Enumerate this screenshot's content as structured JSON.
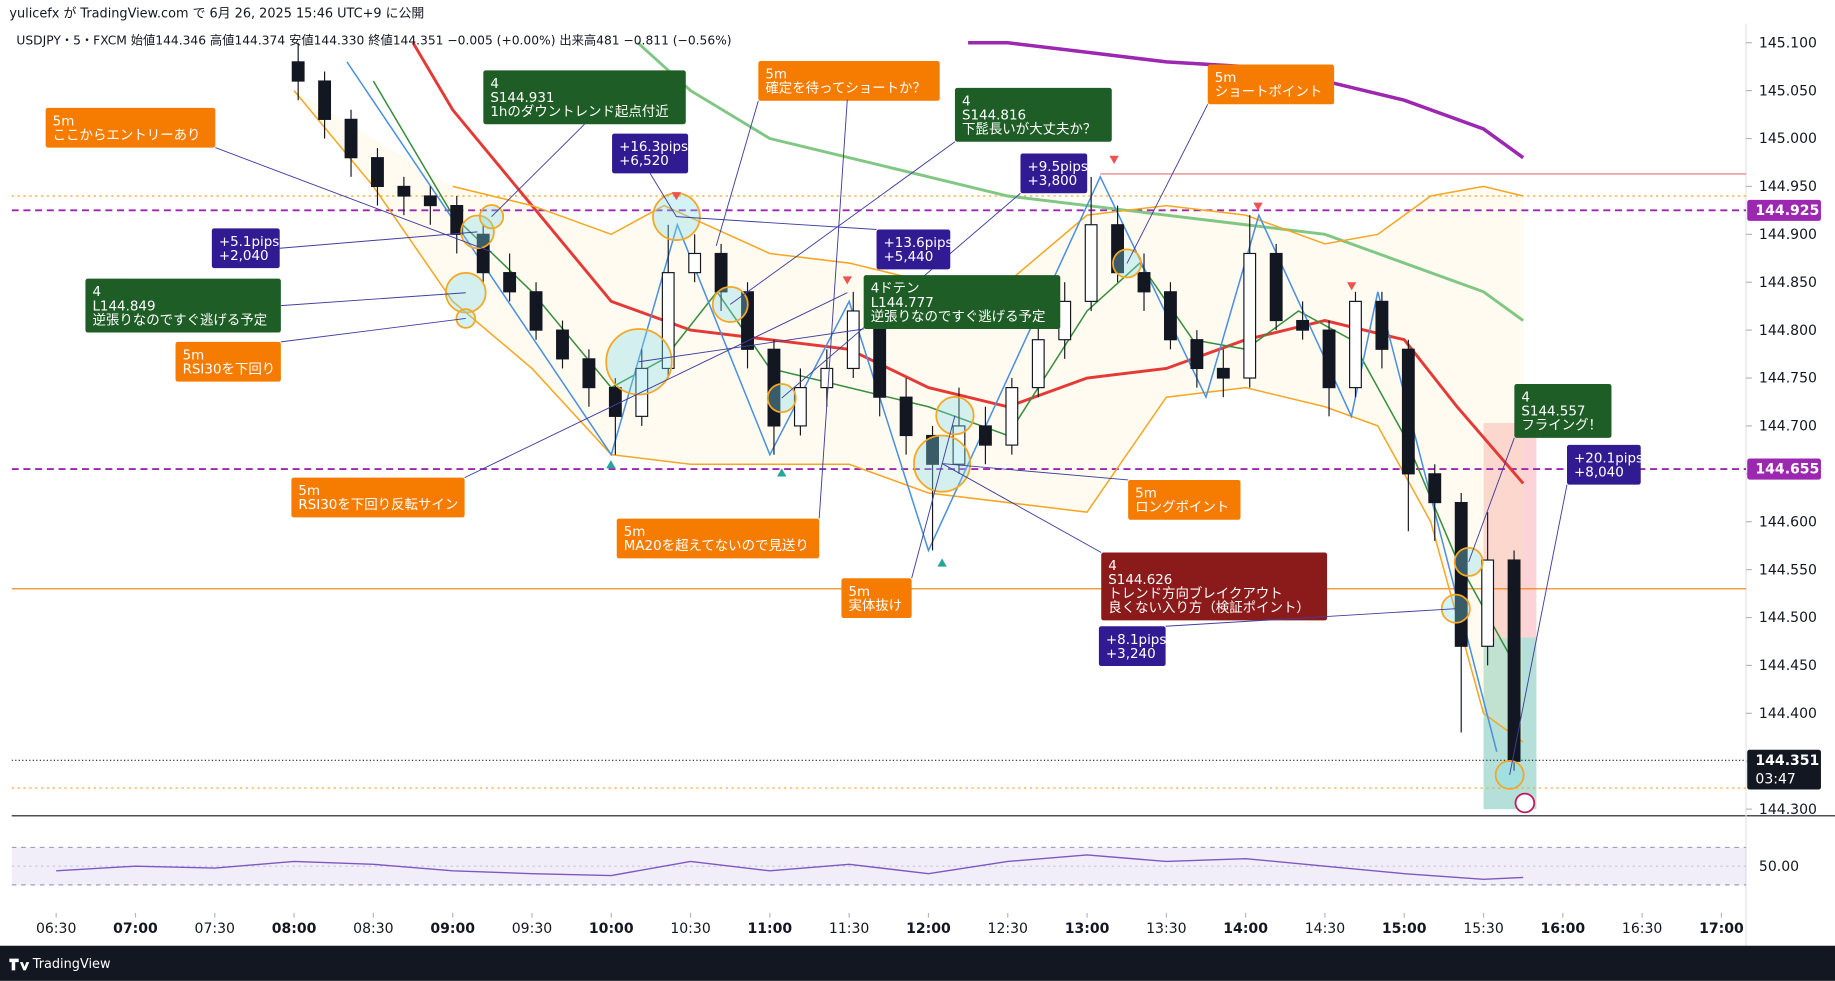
{
  "header": "yulicefx が TradingView.com で 6月 26, 2025 15:46 UTC+9 に公開",
  "footer": "TradingView",
  "chart_data": {
    "type": "candlestick",
    "legend": "USDJPY・5・FXCM  始値144.346  高値144.374  安値144.330  終値144.351  −0.005 (+0.00%)  出来高481  −0.811 (−0.56%)",
    "x": [
      "08:00",
      "08:10",
      "08:20",
      "08:30",
      "08:40",
      "08:50",
      "09:00",
      "09:10",
      "09:20",
      "09:30",
      "09:40",
      "09:50",
      "10:00",
      "10:10",
      "10:20",
      "10:30",
      "10:40",
      "10:50",
      "11:00",
      "11:10",
      "11:20",
      "11:30",
      "11:40",
      "11:50",
      "12:00",
      "12:10",
      "12:20",
      "12:30",
      "12:40",
      "12:50",
      "13:00",
      "13:10",
      "13:20",
      "13:30",
      "13:40",
      "13:50",
      "14:00",
      "14:10",
      "14:20",
      "14:30",
      "14:40",
      "14:50",
      "15:00",
      "15:10",
      "15:20",
      "15:30",
      "15:40"
    ],
    "open": [
      145.08,
      145.06,
      145.02,
      144.98,
      144.95,
      144.94,
      144.93,
      144.9,
      144.86,
      144.84,
      144.8,
      144.77,
      144.74,
      144.71,
      144.76,
      144.86,
      144.88,
      144.84,
      144.78,
      144.7,
      144.74,
      144.76,
      144.82,
      144.73,
      144.69,
      144.66,
      144.7,
      144.68,
      144.74,
      144.79,
      144.83,
      144.91,
      144.86,
      144.84,
      144.79,
      144.76,
      144.75,
      144.88,
      144.81,
      144.8,
      144.74,
      144.83,
      144.78,
      144.65,
      144.62,
      144.47,
      144.56
    ],
    "high": [
      145.1,
      145.07,
      145.03,
      144.99,
      144.96,
      144.95,
      144.94,
      144.91,
      144.88,
      144.85,
      144.81,
      144.78,
      144.75,
      144.78,
      144.91,
      144.9,
      144.89,
      144.85,
      144.79,
      144.76,
      144.78,
      144.84,
      144.83,
      144.75,
      144.7,
      144.74,
      144.72,
      144.75,
      144.81,
      144.85,
      144.96,
      144.93,
      144.88,
      144.85,
      144.8,
      144.78,
      144.92,
      144.89,
      144.83,
      144.81,
      144.84,
      144.84,
      144.79,
      144.66,
      144.63,
      144.61,
      144.57
    ],
    "low": [
      145.04,
      145.0,
      144.96,
      144.93,
      144.92,
      144.91,
      144.88,
      144.85,
      144.83,
      144.79,
      144.76,
      144.72,
      144.67,
      144.7,
      144.75,
      144.85,
      144.82,
      144.76,
      144.67,
      144.69,
      144.72,
      144.75,
      144.71,
      144.67,
      144.57,
      144.65,
      144.66,
      144.67,
      144.73,
      144.77,
      144.82,
      144.85,
      144.82,
      144.78,
      144.74,
      144.73,
      144.74,
      144.8,
      144.79,
      144.71,
      144.73,
      144.76,
      144.59,
      144.58,
      144.38,
      144.45,
      144.34
    ],
    "close": [
      145.06,
      145.02,
      144.98,
      144.95,
      144.94,
      144.93,
      144.9,
      144.86,
      144.84,
      144.8,
      144.77,
      144.74,
      144.71,
      144.76,
      144.86,
      144.88,
      144.84,
      144.78,
      144.7,
      144.74,
      144.76,
      144.82,
      144.73,
      144.69,
      144.66,
      144.7,
      144.68,
      144.74,
      144.79,
      144.83,
      144.91,
      144.86,
      144.84,
      144.79,
      144.76,
      144.75,
      144.88,
      144.81,
      144.8,
      144.74,
      144.83,
      144.78,
      144.65,
      144.62,
      144.47,
      144.56,
      144.35
    ],
    "series": [
      {
        "color": "#e53935",
        "x": [
          "08:45",
          "09:00",
          "09:30",
          "10:00",
          "10:30",
          "11:00",
          "11:30",
          "12:00",
          "12:30",
          "13:00",
          "13:30",
          "14:00",
          "14:30",
          "15:00",
          "15:20",
          "15:45"
        ],
        "values": [
          145.1,
          145.03,
          144.93,
          144.83,
          144.8,
          144.79,
          144.78,
          144.74,
          144.72,
          144.75,
          144.76,
          144.79,
          144.81,
          144.79,
          144.72,
          144.64
        ]
      },
      {
        "color": "#81c784",
        "x": [
          "10:10",
          "10:30",
          "11:00",
          "11:30",
          "12:00",
          "12:30",
          "13:00",
          "13:30",
          "14:00",
          "14:30",
          "15:00",
          "15:30",
          "15:45"
        ],
        "values": [
          145.1,
          145.05,
          145.0,
          144.98,
          144.96,
          144.94,
          144.93,
          144.92,
          144.91,
          144.9,
          144.87,
          144.84,
          144.81
        ]
      },
      {
        "color": "#9c27b0",
        "x": [
          "12:15",
          "12:30",
          "13:00",
          "13:30",
          "14:00",
          "14:30",
          "15:00",
          "15:30",
          "15:45"
        ],
        "values": [
          145.1,
          145.1,
          145.09,
          145.08,
          145.075,
          145.06,
          145.04,
          145.01,
          144.98
        ]
      },
      {
        "color": "#f5a623",
        "x": [
          "09:00",
          "09:30",
          "10:00",
          "10:20",
          "11:00",
          "11:30",
          "12:00",
          "12:30",
          "13:00",
          "13:30",
          "14:00",
          "14:30",
          "14:50",
          "15:10",
          "15:30",
          "15:45"
        ],
        "values": [
          144.95,
          144.93,
          144.9,
          144.93,
          144.88,
          144.87,
          144.85,
          144.85,
          144.92,
          144.93,
          144.92,
          144.89,
          144.9,
          144.94,
          144.95,
          144.94
        ]
      },
      {
        "color": "#f5a623",
        "x": [
          "08:00",
          "08:30",
          "09:00",
          "09:30",
          "10:00",
          "10:30",
          "11:00",
          "11:30",
          "12:00",
          "12:30",
          "13:00",
          "13:30",
          "14:00",
          "14:30",
          "14:50",
          "15:10",
          "15:30",
          "15:45"
        ],
        "values": [
          145.05,
          144.95,
          144.83,
          144.76,
          144.67,
          144.66,
          144.66,
          144.66,
          144.63,
          144.62,
          144.61,
          144.73,
          144.74,
          144.72,
          144.7,
          144.6,
          144.4,
          144.37
        ]
      },
      {
        "color": "#388e3c",
        "x": [
          "08:30",
          "09:00",
          "09:30",
          "10:00",
          "10:20",
          "10:40",
          "11:00",
          "11:30",
          "12:00",
          "12:30",
          "13:00",
          "13:20",
          "13:40",
          "14:00",
          "14:20",
          "14:40",
          "15:00",
          "15:20",
          "15:40"
        ],
        "values": [
          145.06,
          144.92,
          144.84,
          144.74,
          144.77,
          144.84,
          144.76,
          144.74,
          144.72,
          144.69,
          144.82,
          144.87,
          144.79,
          144.78,
          144.82,
          144.79,
          144.69,
          144.56,
          144.46
        ]
      },
      {
        "color": "#4a90e2",
        "x": [
          "08:20",
          "10:00",
          "10:25",
          "11:00",
          "11:30",
          "12:00",
          "13:05",
          "13:45",
          "14:05",
          "14:40",
          "14:50",
          "15:35"
        ],
        "values": [
          145.08,
          144.67,
          144.91,
          144.67,
          144.83,
          144.57,
          144.96,
          144.73,
          144.92,
          144.71,
          144.84,
          144.36
        ]
      }
    ],
    "hlines": [
      {
        "value": 144.925,
        "color": "#9c27b0",
        "style": "dashed",
        "label": 144.925
      },
      {
        "value": 144.655,
        "color": "#9c27b0",
        "style": "dashed",
        "label": 144.655
      },
      {
        "value": 144.53,
        "color": "#f57c00",
        "style": "solid"
      },
      {
        "value": 144.94,
        "color": "#f5a623",
        "style": "dotted"
      },
      {
        "value": 144.322,
        "color": "#f5a623",
        "style": "dotted"
      },
      {
        "value": 144.963,
        "color": "#e57373",
        "style": "solid",
        "from": "13:05"
      }
    ],
    "last_price": {
      "value": 144.351,
      "label": 144.351,
      "countdown": "03:47"
    },
    "position": {
      "from": "15:30",
      "to": "15:50",
      "stop": 144.703,
      "entry": 144.479,
      "target": 144.3
    },
    "ylim": [
      144.293,
      145.12
    ],
    "yticks": [
      {
        "value": 145.1,
        "label": "145.100"
      },
      {
        "value": 145.05,
        "label": "145.050"
      },
      {
        "value": 145.0,
        "label": "145.000"
      },
      {
        "value": 144.95,
        "label": "144.950"
      },
      {
        "value": 144.9,
        "label": "144.900"
      },
      {
        "value": 144.85,
        "label": "144.850"
      },
      {
        "value": 144.8,
        "label": "144.800"
      },
      {
        "value": 144.75,
        "label": "144.750"
      },
      {
        "value": 144.7,
        "label": "144.700"
      },
      {
        "value": 144.65,
        "label": "144.650"
      },
      {
        "value": 144.6,
        "label": "144.600"
      },
      {
        "value": 144.55,
        "label": "144.550"
      },
      {
        "value": 144.5,
        "label": "144.500"
      },
      {
        "value": 144.45,
        "label": "144.450"
      },
      {
        "value": 144.4,
        "label": "144.400"
      },
      {
        "value": 144.35,
        "label": "144.350"
      },
      {
        "value": 144.3,
        "label": "144.300"
      }
    ],
    "xticks": [
      "06:30",
      "07:00",
      "07:30",
      "08:00",
      "08:30",
      "09:00",
      "09:30",
      "10:00",
      "10:30",
      "11:00",
      "11:30",
      "12:00",
      "12:30",
      "13:00",
      "13:30",
      "14:00",
      "14:30",
      "15:00",
      "15:30",
      "16:00",
      "16:30",
      "17:00"
    ],
    "rsi": {
      "color": "#7e57c2",
      "ylim": [
        0,
        100
      ],
      "band": [
        30,
        70
      ],
      "yticks": [
        {
          "value": 50,
          "label": "50.00"
        }
      ],
      "x": [
        "06:30",
        "07:00",
        "07:30",
        "08:00",
        "08:30",
        "09:00",
        "09:30",
        "10:00",
        "10:30",
        "11:00",
        "11:30",
        "12:00",
        "12:30",
        "13:00",
        "13:30",
        "14:00",
        "14:30",
        "15:00",
        "15:30",
        "15:45"
      ],
      "values": [
        45,
        50,
        48,
        55,
        52,
        45,
        42,
        40,
        55,
        45,
        52,
        42,
        55,
        62,
        55,
        58,
        50,
        42,
        36,
        38
      ]
    },
    "annotations": [
      {
        "lines": [
          "5m",
          "ここからエントリーあり"
        ],
        "color": "#f57c00"
      },
      {
        "lines": [
          "4",
          "S144.931",
          "1hのダウントレンド起点付近"
        ],
        "color": "#1e5e26"
      },
      {
        "lines": [
          "+16.3pips",
          "+6,520"
        ],
        "color": "#311b92"
      },
      {
        "lines": [
          "5m",
          "確定を待ってショートか？"
        ],
        "color": "#f57c00"
      },
      {
        "lines": [
          "4",
          "S144.816",
          "下髭長いが大丈夫か？"
        ],
        "color": "#1e5e26"
      },
      {
        "lines": [
          "+9.5pips",
          "+3,800"
        ],
        "color": "#311b92"
      },
      {
        "lines": [
          "5m",
          "ショートポイント"
        ],
        "color": "#f57c00"
      },
      {
        "lines": [
          "+5.1pips",
          "+2,040"
        ],
        "color": "#311b92"
      },
      {
        "lines": [
          "+13.6pips",
          "+5,440"
        ],
        "color": "#311b92"
      },
      {
        "lines": [
          "4",
          "L144.849",
          "逆張りなのですぐ逃げる予定"
        ],
        "color": "#1e5e26"
      },
      {
        "lines": [
          "4ドテン",
          "L144.777",
          "逆張りなのですぐ逃げる予定"
        ],
        "color": "#1e5e26"
      },
      {
        "lines": [
          "5m",
          "RSI30を下回り"
        ],
        "color": "#f57c00"
      },
      {
        "lines": [
          "5m",
          "RSI30を下回り反転サイン"
        ],
        "color": "#f57c00"
      },
      {
        "lines": [
          "5m",
          "MA20を超えてないので見送り"
        ],
        "color": "#f57c00"
      },
      {
        "lines": [
          "5m",
          "実体抜け"
        ],
        "color": "#f57c00"
      },
      {
        "lines": [
          "5m",
          "ロングポイント"
        ],
        "color": "#f57c00"
      },
      {
        "lines": [
          "4",
          "S144.626",
          "トレンド方向ブレイクアウト",
          "良くない入り方（検証ポイント）"
        ],
        "color": "#8b1a1a"
      },
      {
        "lines": [
          "+8.1pips",
          "+3,240"
        ],
        "color": "#311b92"
      },
      {
        "lines": [
          "4",
          "S144.557",
          "フライング！"
        ],
        "color": "#1e5e26"
      },
      {
        "lines": [
          "+20.1pips",
          "+8,040"
        ],
        "color": "#311b92"
      }
    ]
  }
}
